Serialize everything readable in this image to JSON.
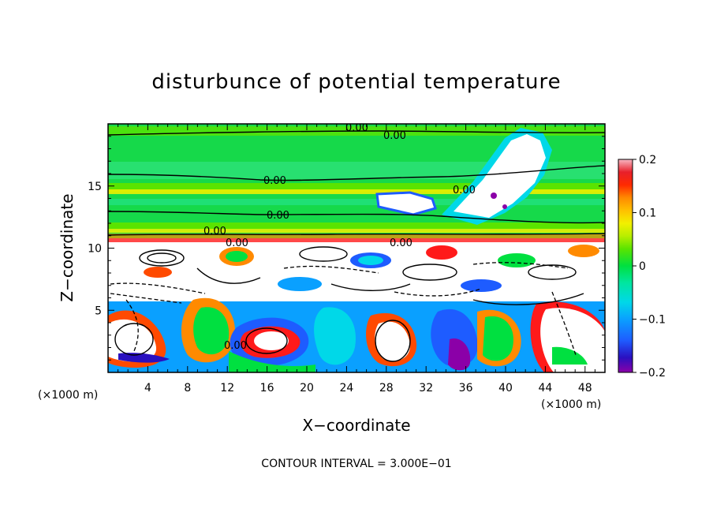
{
  "chart_data": {
    "type": "heatmap",
    "title": "disturbunce of potential temperature",
    "xlabel": "X−coordinate",
    "ylabel": "Z−coordinate",
    "x_unit": "(×1000 m)",
    "x_unit_right": "(×1000 m)",
    "xlim": [
      0,
      50
    ],
    "ylim": [
      0,
      20
    ],
    "x_ticks": [
      4,
      8,
      12,
      16,
      20,
      24,
      28,
      32,
      36,
      40,
      44,
      48
    ],
    "y_ticks": [
      5,
      10,
      15
    ],
    "colorbar": {
      "range": [
        -0.2,
        0.2
      ],
      "ticks": [
        0.2,
        0.1,
        0,
        -0.1,
        -0.2
      ],
      "tick_labels": [
        "0.2",
        "0.1",
        "0",
        "−0.1",
        "−0.2"
      ],
      "colors": [
        "#8b00a8",
        "#2a10c0",
        "#1e5cff",
        "#0aa0ff",
        "#00d8e8",
        "#00e6a0",
        "#00e040",
        "#5ae400",
        "#b8ee00",
        "#f2f000",
        "#ffc000",
        "#ff8a00",
        "#ff4a00",
        "#ff1a1a",
        "#f06a78",
        "#f8b8c4"
      ]
    },
    "contour_labels": [
      "0.00",
      "0.00",
      "0.00",
      "0.00",
      "0.00",
      "0.00",
      "0.00",
      "0.00",
      "0.00"
    ],
    "contour_interval": "CONTOUR INTERVAL = 3.000E−01",
    "grid": false
  },
  "colors": {
    "green": "#16d94a",
    "yellow": "#f2f000",
    "orange": "#ff8a00",
    "red": "#ff1a1a",
    "cyan": "#00d8e8",
    "blue": "#1e5cff",
    "purple": "#8b00a8"
  }
}
